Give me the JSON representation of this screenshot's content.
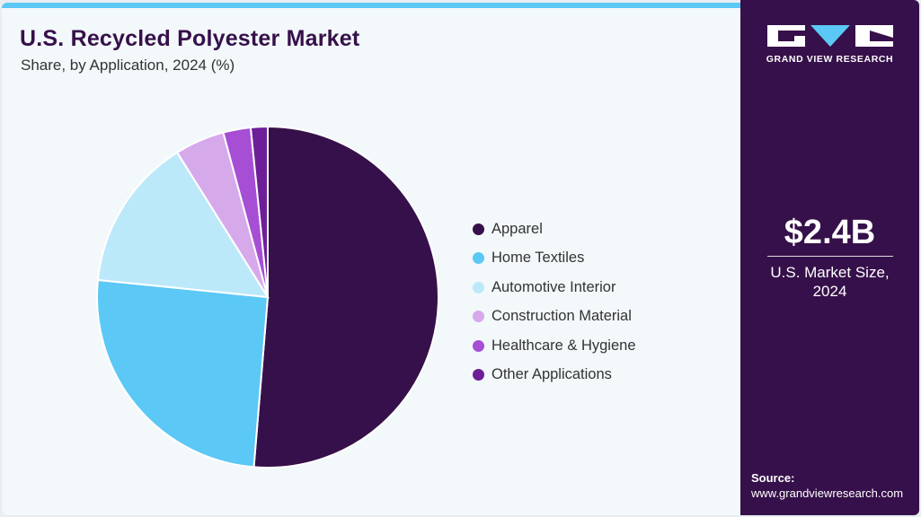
{
  "header": {
    "title": "U.S. Recycled Polyester Market",
    "subtitle": "Share, by Application, 2024 (%)"
  },
  "brand": {
    "name": "GRAND VIEW RESEARCH",
    "colors": {
      "accent": "#5bc8f5",
      "panel": "#36104a",
      "background": "#f3f8fb"
    }
  },
  "kpi": {
    "value": "$2.4B",
    "label_line1": "U.S. Market Size,",
    "label_line2": "2024"
  },
  "source": {
    "label": "Source:",
    "url": "www.grandviewresearch.com"
  },
  "chart_data": {
    "type": "pie",
    "title": "U.S. Recycled Polyester Market",
    "subtitle": "Share, by Application, 2024 (%)",
    "categories": [
      "Apparel",
      "Home Textiles",
      "Automotive Interior",
      "Construction Material",
      "Healthcare & Hygiene",
      "Other Applications"
    ],
    "values": [
      51.3,
      25.3,
      14.5,
      4.7,
      2.6,
      1.6
    ],
    "colors": [
      "#36104a",
      "#5bc8f5",
      "#bce9f9",
      "#d6a9eb",
      "#a64ed4",
      "#6d1f98"
    ],
    "start_angle_deg": 0,
    "direction": "clockwise",
    "legend_position": "right",
    "data_labels": false
  }
}
